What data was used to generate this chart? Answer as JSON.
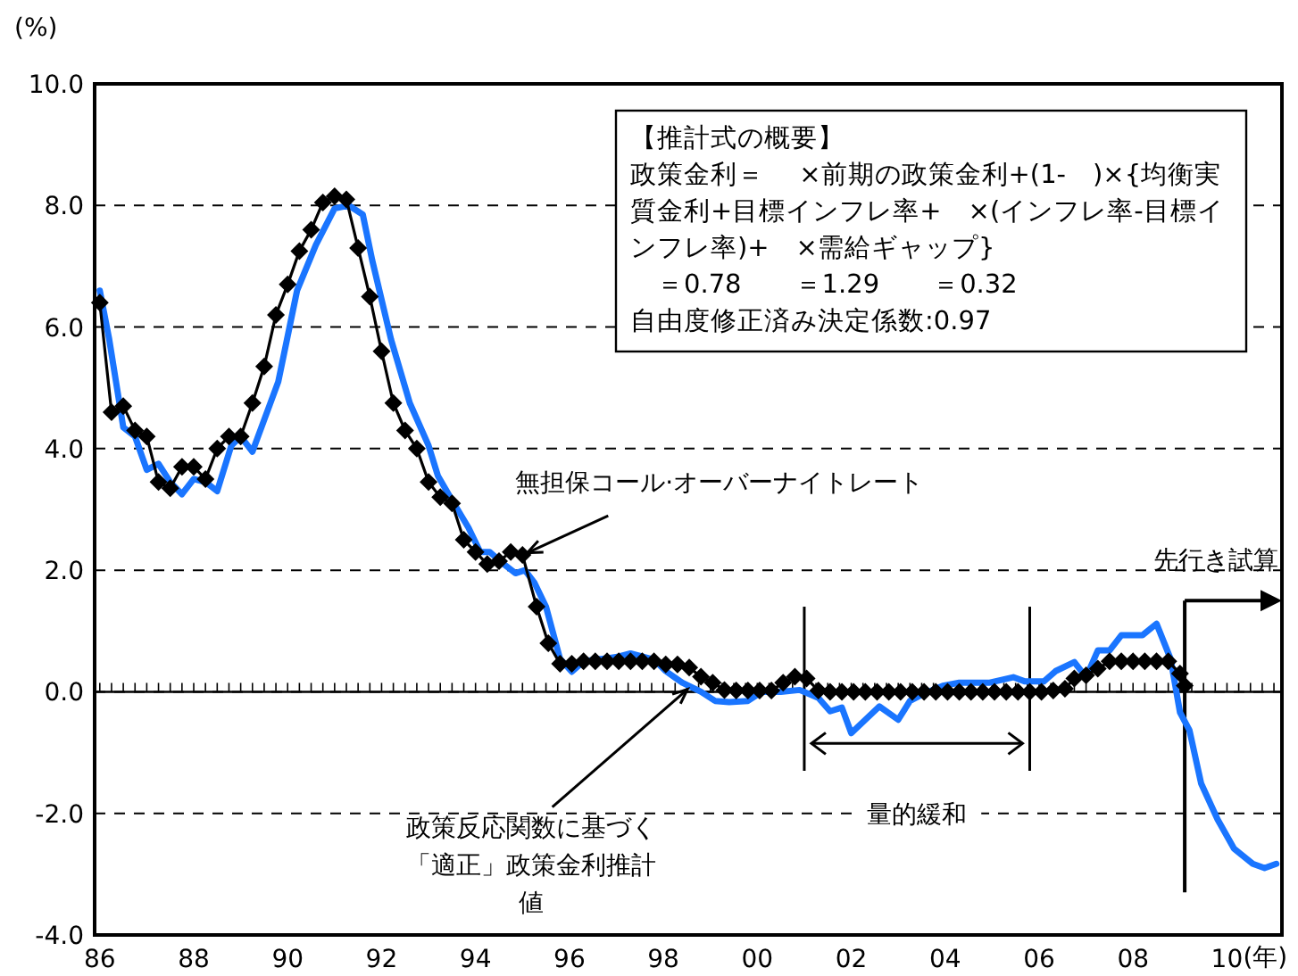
{
  "chart_data": {
    "type": "line",
    "ylabel": "(%)",
    "xlabel": "(年)",
    "xlim": [
      1985.89,
      2011.17
    ],
    "xticks": [
      {
        "value": 1986,
        "label": "86"
      },
      {
        "value": 1988,
        "label": "88"
      },
      {
        "value": 1990,
        "label": "90"
      },
      {
        "value": 1992,
        "label": "92"
      },
      {
        "value": 1994,
        "label": "94"
      },
      {
        "value": 1996,
        "label": "96"
      },
      {
        "value": 1998,
        "label": "98"
      },
      {
        "value": 2000,
        "label": "00"
      },
      {
        "value": 2002,
        "label": "02"
      },
      {
        "value": 2004,
        "label": "04"
      },
      {
        "value": 2006,
        "label": "06"
      },
      {
        "value": 2008,
        "label": "08"
      },
      {
        "value": 2010,
        "label": "10"
      }
    ],
    "ylim": [
      -4,
      10
    ],
    "yticks": [
      {
        "value": -4,
        "label": "-4.0"
      },
      {
        "value": -2,
        "label": "-2.0"
      },
      {
        "value": 0,
        "label": "0.0"
      },
      {
        "value": 2,
        "label": "2.0"
      },
      {
        "value": 4,
        "label": "4.0"
      },
      {
        "value": 6,
        "label": "6.0"
      },
      {
        "value": 8,
        "label": "8.0"
      },
      {
        "value": 10,
        "label": "10.0"
      }
    ],
    "grid": "y",
    "series": [
      {
        "color": "#1a75ff",
        "marker": "none",
        "x": [
          1986.0,
          1986.2,
          1986.5,
          1986.75,
          1987.0,
          1987.25,
          1987.5,
          1987.75,
          1988.0,
          1988.25,
          1988.5,
          1988.8,
          1989.0,
          1989.25,
          1989.8,
          1990.2,
          1990.6,
          1991.0,
          1991.3,
          1991.6,
          1991.8,
          1992.2,
          1992.6,
          1993.0,
          1993.2,
          1993.5,
          1993.85,
          1994.1,
          1994.3,
          1994.6,
          1994.85,
          1995.05,
          1995.25,
          1995.5,
          1995.8,
          1996.05,
          1996.3,
          1996.55,
          1996.8,
          1997.05,
          1997.3,
          1997.55,
          1997.8,
          1998.05,
          1998.4,
          1998.8,
          1999.1,
          1999.4,
          1999.8,
          2000.1,
          2000.5,
          2000.9,
          2001.3,
          2001.55,
          2001.8,
          2002.0,
          2002.3,
          2002.6,
          2003.0,
          2003.25,
          2003.55,
          2003.95,
          2004.3,
          2004.95,
          2005.45,
          2005.7,
          2006.1,
          2006.35,
          2006.75,
          2007.0,
          2007.25,
          2007.5,
          2007.75,
          2008.2,
          2008.5,
          2008.8,
          2009.0,
          2009.2,
          2009.45,
          2009.8,
          2010.15,
          2010.55,
          2010.8,
          2011.05
        ],
        "values": [
          6.6,
          5.8,
          4.35,
          4.2,
          3.65,
          3.75,
          3.45,
          3.25,
          3.5,
          3.45,
          3.3,
          4.05,
          4.2,
          3.95,
          5.1,
          6.6,
          7.35,
          7.95,
          8.0,
          7.85,
          7.1,
          5.8,
          4.75,
          4.05,
          3.55,
          3.15,
          2.7,
          2.3,
          2.3,
          2.1,
          1.95,
          2.0,
          1.8,
          1.4,
          0.54,
          0.33,
          0.5,
          0.53,
          0.55,
          0.58,
          0.63,
          0.58,
          0.53,
          0.34,
          0.15,
          0.0,
          -0.15,
          -0.17,
          -0.15,
          0.0,
          0.0,
          0.03,
          -0.1,
          -0.32,
          -0.26,
          -0.68,
          -0.46,
          -0.24,
          -0.46,
          -0.15,
          -0.03,
          0.1,
          0.15,
          0.15,
          0.24,
          0.17,
          0.17,
          0.34,
          0.49,
          0.24,
          0.68,
          0.68,
          0.93,
          0.93,
          1.12,
          0.54,
          -0.34,
          -0.63,
          -1.51,
          -2.1,
          -2.58,
          -2.83,
          -2.9,
          -2.83
        ]
      },
      {
        "color": "#000000",
        "marker": "diamond",
        "x": [
          1986.0,
          1986.25,
          1986.5,
          1986.75,
          1987.0,
          1987.25,
          1987.5,
          1987.75,
          1988.0,
          1988.25,
          1988.5,
          1988.75,
          1989.0,
          1989.25,
          1989.5,
          1989.75,
          1990.0,
          1990.25,
          1990.5,
          1990.75,
          1991.0,
          1991.25,
          1991.5,
          1991.75,
          1992.0,
          1992.25,
          1992.5,
          1992.75,
          1993.0,
          1993.25,
          1993.5,
          1993.75,
          1994.0,
          1994.25,
          1994.5,
          1994.75,
          1995.0,
          1995.3,
          1995.55,
          1995.8,
          1996.05,
          1996.3,
          1996.55,
          1996.8,
          1997.05,
          1997.3,
          1997.55,
          1997.8,
          1998.05,
          1998.3,
          1998.55,
          1998.8,
          1999.05,
          1999.3,
          1999.55,
          1999.8,
          2000.05,
          2000.3,
          2000.55,
          2000.8,
          2001.05,
          2001.3,
          2001.55,
          2001.8,
          2002.05,
          2002.3,
          2002.55,
          2002.8,
          2003.05,
          2003.3,
          2003.55,
          2003.8,
          2004.05,
          2004.3,
          2004.55,
          2004.8,
          2005.05,
          2005.3,
          2005.55,
          2005.8,
          2006.05,
          2006.3,
          2006.55,
          2006.75,
          2007.0,
          2007.25,
          2007.5,
          2007.75,
          2008.0,
          2008.25,
          2008.5,
          2008.75,
          2009.0,
          2009.1
        ],
        "values": [
          6.4,
          4.6,
          4.7,
          4.3,
          4.2,
          3.45,
          3.35,
          3.7,
          3.7,
          3.5,
          4.0,
          4.2,
          4.2,
          4.75,
          5.35,
          6.2,
          6.7,
          7.25,
          7.6,
          8.05,
          8.15,
          8.1,
          7.3,
          6.5,
          5.6,
          4.75,
          4.3,
          4.0,
          3.45,
          3.2,
          3.1,
          2.5,
          2.3,
          2.1,
          2.15,
          2.3,
          2.25,
          1.4,
          0.8,
          0.46,
          0.46,
          0.5,
          0.5,
          0.5,
          0.5,
          0.5,
          0.5,
          0.5,
          0.45,
          0.45,
          0.4,
          0.25,
          0.15,
          0.03,
          0.02,
          0.02,
          0.02,
          0.02,
          0.15,
          0.25,
          0.22,
          0.02,
          0.0,
          0.0,
          0.0,
          0.0,
          0.0,
          0.0,
          0.0,
          0.0,
          0.0,
          0.0,
          0.0,
          0.0,
          0.0,
          0.0,
          0.0,
          0.0,
          0.0,
          0.0,
          0.0,
          0.02,
          0.05,
          0.22,
          0.27,
          0.38,
          0.5,
          0.5,
          0.5,
          0.5,
          0.5,
          0.5,
          0.3,
          0.1
        ]
      }
    ],
    "ref_lines": [
      {
        "axis": "x",
        "value": 2001.0
      },
      {
        "axis": "x",
        "value": 2005.8
      },
      {
        "axis": "x",
        "value": 2009.1,
        "label": "先行き試算"
      }
    ],
    "annotations": [
      "【推計式の概要】",
      "政策金利＝　 ×前期の政策金利+(1-　)×{均衡実質金利+目標インフレ率+　×(インフレ率-目標インフレ率)+　×需給ギャップ}",
      "　＝0.78　　＝1.29　　＝0.32",
      "自由度修正済み決定係数:0.97",
      "量的緩和",
      {
        "text": "無担保コール·オーバーナイトレート",
        "x": 1995.0,
        "y": 2.25
      },
      {
        "text": "政策反応関数に基づく「適正」政策金利推計値",
        "x": 1998.6,
        "y": 0.1
      }
    ]
  }
}
